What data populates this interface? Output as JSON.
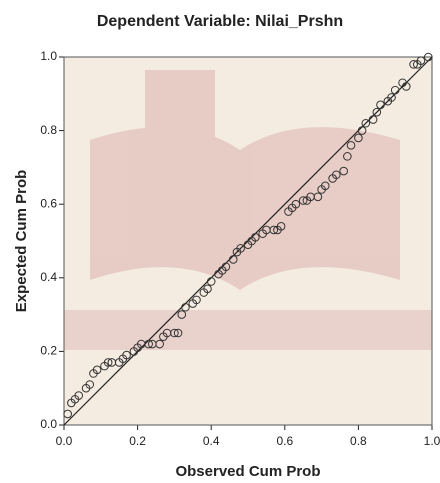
{
  "chart_data": {
    "type": "scatter",
    "title": "Dependent Variable: Nilai_Prshn",
    "xlabel": "Observed Cum Prob",
    "ylabel": "Expected Cum Prob",
    "xlim": [
      0,
      1
    ],
    "ylim": [
      0,
      1
    ],
    "xticks": [
      {
        "value": 0,
        "label": "0.0"
      },
      0.2,
      0.4,
      0.6,
      0.8,
      {
        "value": 1,
        "label": "1.0"
      }
    ],
    "yticks": [
      {
        "value": 0,
        "label": "0.0"
      },
      0.2,
      0.4,
      0.6,
      0.8,
      {
        "value": 1,
        "label": "1.0"
      }
    ],
    "color": "#333333",
    "reference_line_color": "#222222",
    "x": [
      0.01,
      0.02,
      0.03,
      0.04,
      0.06,
      0.07,
      0.08,
      0.09,
      0.11,
      0.12,
      0.13,
      0.15,
      0.16,
      0.17,
      0.19,
      0.2,
      0.21,
      0.23,
      0.24,
      0.26,
      0.27,
      0.28,
      0.3,
      0.31,
      0.32,
      0.33,
      0.35,
      0.36,
      0.38,
      0.39,
      0.4,
      0.42,
      0.43,
      0.44,
      0.46,
      0.47,
      0.48,
      0.5,
      0.51,
      0.52,
      0.54,
      0.55,
      0.57,
      0.58,
      0.59,
      0.61,
      0.62,
      0.63,
      0.65,
      0.66,
      0.67,
      0.69,
      0.7,
      0.71,
      0.73,
      0.74,
      0.76,
      0.77,
      0.78,
      0.8,
      0.81,
      0.82,
      0.84,
      0.85,
      0.86,
      0.88,
      0.89,
      0.9,
      0.92,
      0.93,
      0.95,
      0.96,
      0.97,
      0.99
    ],
    "values": [
      0.03,
      0.06,
      0.07,
      0.08,
      0.1,
      0.11,
      0.14,
      0.15,
      0.16,
      0.17,
      0.17,
      0.17,
      0.18,
      0.19,
      0.2,
      0.21,
      0.22,
      0.22,
      0.22,
      0.22,
      0.24,
      0.25,
      0.25,
      0.25,
      0.3,
      0.32,
      0.33,
      0.34,
      0.36,
      0.37,
      0.39,
      0.41,
      0.42,
      0.43,
      0.45,
      0.47,
      0.48,
      0.49,
      0.5,
      0.51,
      0.52,
      0.53,
      0.53,
      0.53,
      0.54,
      0.58,
      0.59,
      0.6,
      0.61,
      0.61,
      0.62,
      0.62,
      0.64,
      0.65,
      0.67,
      0.68,
      0.69,
      0.73,
      0.76,
      0.78,
      0.8,
      0.82,
      0.83,
      0.85,
      0.87,
      0.88,
      0.89,
      0.91,
      0.93,
      0.92,
      0.98,
      0.98,
      0.99,
      1.0
    ]
  }
}
